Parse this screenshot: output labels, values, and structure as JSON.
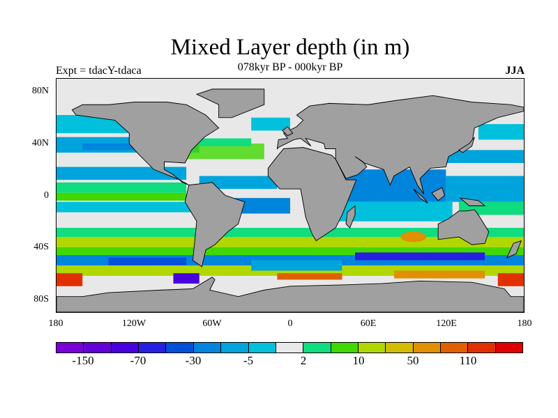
{
  "title": "Mixed Layer depth (in m)",
  "subtitle": "078kyr BP - 000kyr BP",
  "left_label": "Expt = tdacY-tdaca",
  "right_label": "JJA",
  "lat_ticks": [
    "80N",
    "40N",
    "0",
    "40S",
    "80S"
  ],
  "lon_ticks": [
    "180",
    "120W",
    "60W",
    "0",
    "60E",
    "120E",
    "180"
  ],
  "colorbar": {
    "colors": [
      "#7a00d8",
      "#6400d8",
      "#4800dc",
      "#2820e0",
      "#0050d8",
      "#0084dc",
      "#00a4dc",
      "#00c0dc",
      "#e8e8e8",
      "#10dc80",
      "#40d800",
      "#b0d800",
      "#d4bc00",
      "#e09000",
      "#e06000",
      "#e03000",
      "#e00000"
    ],
    "labels": [
      "-150",
      "-70",
      "-30",
      "-5",
      "2",
      "10",
      "50",
      "110"
    ]
  },
  "map_colors": {
    "land": "#a0a0a0",
    "coast": "#000000"
  }
}
